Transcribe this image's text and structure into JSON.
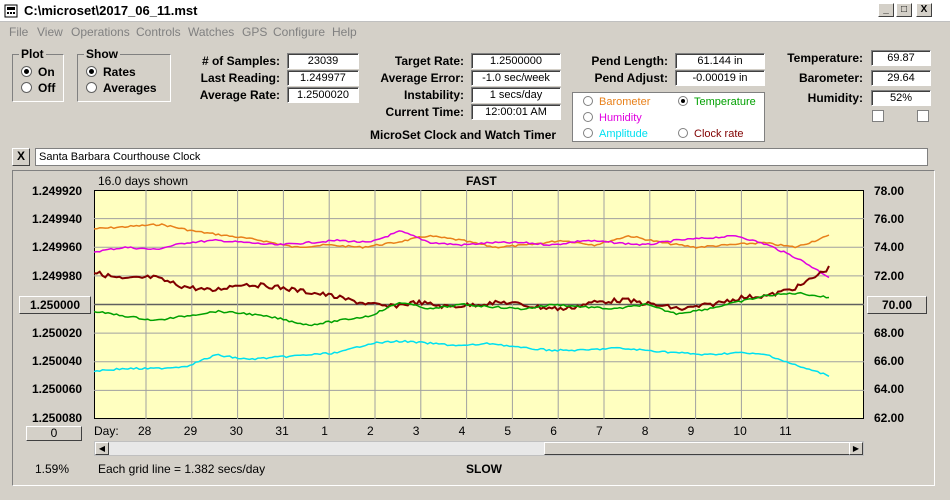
{
  "window": {
    "title": "C:\\microset\\2017_06_11.mst",
    "min": "_",
    "max": "□",
    "close": "X"
  },
  "menu": [
    "File",
    "View",
    "Operations",
    "Controls",
    "Watches",
    "GPS",
    "Configure",
    "Help"
  ],
  "plot_group": {
    "title": "Plot",
    "options": [
      {
        "label": "On",
        "selected": true
      },
      {
        "label": "Off",
        "selected": false
      }
    ]
  },
  "show_group": {
    "title": "Show",
    "options": [
      {
        "label": "Rates",
        "selected": true
      },
      {
        "label": "Averages",
        "selected": false
      }
    ]
  },
  "stats": {
    "samples_label": "# of Samples:",
    "samples": "23039",
    "last_label": "Last Reading:",
    "last": "1.249977",
    "avg_rate_label": "Average Rate:",
    "avg_rate": "1.2500020"
  },
  "targets": {
    "target_label": "Target Rate:",
    "target": "1.2500000",
    "avg_err_label": "Average Error:",
    "avg_err": "-1.0 sec/week",
    "instab_label": "Instability:",
    "instab": "1 secs/day",
    "time_label": "Current Time:",
    "time": "12:00:01 AM"
  },
  "pendulum": {
    "length_label": "Pend Length:",
    "length": "61.144 in",
    "adjust_label": "Pend Adjust:",
    "adjust": "-0.00019 in"
  },
  "environment": {
    "temp_label": "Temperature:",
    "temp": "69.87",
    "baro_label": "Barometer:",
    "baro": "29.64",
    "hum_label": "Humidity:",
    "hum": "52%"
  },
  "legend": [
    {
      "label": "Barometer",
      "color": "#e8801a",
      "selected": false
    },
    {
      "label": "Temperature",
      "color": "#00a000",
      "selected": true
    },
    {
      "label": "Humidity",
      "color": "#e000e0",
      "selected": false
    },
    {
      "label": "Clock rate",
      "color": "#800000",
      "selected": false
    },
    {
      "label": "Amplitude",
      "color": "#00e0f0",
      "selected": false
    }
  ],
  "app_caption": "MicroSet Clock and Watch Timer",
  "clock_name": "Santa Barbara Courthouse Clock",
  "close_btn": "X",
  "chart": {
    "days_shown": "16.0 days shown",
    "top_label": "FAST",
    "bottom_label": "SLOW",
    "left_ticks": [
      "1.249920",
      "1.249940",
      "1.249960",
      "1.249980",
      "1.250000",
      "1.250020",
      "1.250040",
      "1.250060",
      "1.250080"
    ],
    "center_left": "1.250000",
    "right_ticks": [
      "78.00",
      "76.00",
      "74.00",
      "72.00",
      "70.00",
      "68.00",
      "66.00",
      "64.00",
      "62.00"
    ],
    "center_right": "70.00",
    "day_label": "Day:",
    "days": [
      "28",
      "29",
      "30",
      "31",
      "1",
      "2",
      "3",
      "4",
      "5",
      "6",
      "7",
      "8",
      "9",
      "10",
      "11"
    ],
    "grid_note": "Each grid line = 1.382 secs/day",
    "percent": "1.59%",
    "zero_btn": "0"
  },
  "chart_data": {
    "type": "line",
    "left_axis": {
      "range": [
        1.24992,
        1.25008
      ],
      "inverted": true,
      "label": ""
    },
    "right_axis": {
      "range": [
        62,
        78
      ],
      "label": ""
    },
    "x_axis_ticks": [
      "28",
      "29",
      "30",
      "31",
      "1",
      "2",
      "3",
      "4",
      "5",
      "6",
      "7",
      "8",
      "9",
      "10",
      "11"
    ],
    "series": [
      {
        "name": "Barometer",
        "color": "#e8801a",
        "shape": [
          0.17,
          0.16,
          0.15,
          0.18,
          0.2,
          0.22,
          0.25,
          0.24,
          0.25,
          0.23,
          0.2,
          0.22,
          0.25,
          0.24,
          0.22,
          0.24,
          0.2,
          0.23,
          0.25,
          0.24,
          0.23,
          0.25,
          0.2
        ]
      },
      {
        "name": "Humidity",
        "color": "#e000e0",
        "shape": [
          0.27,
          0.25,
          0.26,
          0.23,
          0.22,
          0.23,
          0.24,
          0.23,
          0.22,
          0.23,
          0.18,
          0.23,
          0.24,
          0.23,
          0.23,
          0.24,
          0.22,
          0.23,
          0.24,
          0.22,
          0.21,
          0.2,
          0.24,
          0.3,
          0.38
        ]
      },
      {
        "name": "Clock rate",
        "color": "#800000",
        "shape": [
          0.36,
          0.39,
          0.38,
          0.42,
          0.44,
          0.41,
          0.42,
          0.44,
          0.46,
          0.49,
          0.51,
          0.49,
          0.51,
          0.5,
          0.49,
          0.51,
          0.52,
          0.49,
          0.48,
          0.5,
          0.52,
          0.5,
          0.47,
          0.46,
          0.42,
          0.34
        ]
      },
      {
        "name": "Temperature",
        "color": "#00a000",
        "shape": [
          0.53,
          0.55,
          0.57,
          0.55,
          0.53,
          0.54,
          0.56,
          0.59,
          0.57,
          0.55,
          0.49,
          0.52,
          0.5,
          0.51,
          0.52,
          0.5,
          0.51,
          0.52,
          0.5,
          0.54,
          0.52,
          0.49,
          0.46,
          0.45,
          0.47
        ]
      },
      {
        "name": "Amplitude",
        "color": "#00e0f0",
        "shape": [
          0.79,
          0.78,
          0.78,
          0.77,
          0.72,
          0.74,
          0.73,
          0.72,
          0.71,
          0.67,
          0.66,
          0.67,
          0.68,
          0.67,
          0.69,
          0.7,
          0.7,
          0.69,
          0.7,
          0.71,
          0.72,
          0.71,
          0.72,
          0.77,
          0.81
        ]
      }
    ]
  }
}
